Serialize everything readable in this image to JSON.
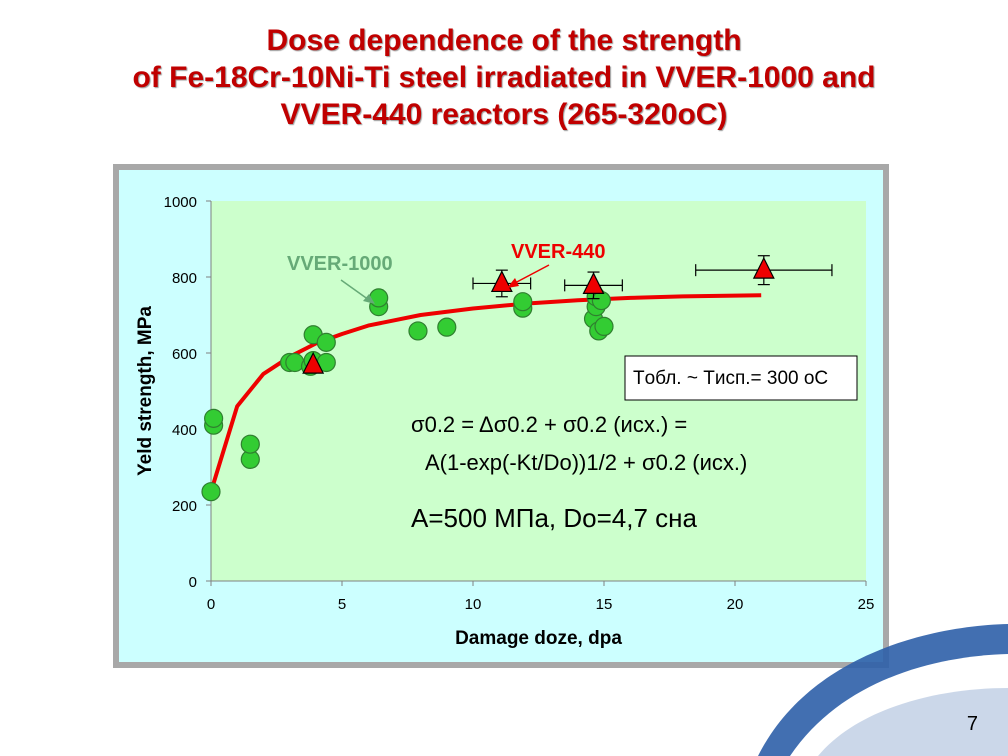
{
  "slide": {
    "title_lines": [
      "Dose dependence of the strength",
      "of Fe-18Cr-10Ni-Ti steel irradiated in VVER-1000 and",
      "VVER-440 reactors (265-320оС)"
    ],
    "page_number": "7",
    "colors": {
      "title": "#c00000",
      "frame": "#a8a8a8",
      "chart_bg": "#ccffff",
      "plot_bg": "#ccffcc",
      "deco": "#2e5fa8"
    }
  },
  "chart_data": {
    "type": "scatter",
    "xlabel": "Damage doze, dpa",
    "ylabel": "Yeld strength, MPa",
    "xlim": [
      0,
      25
    ],
    "ylim": [
      0,
      1000
    ],
    "xticks": [
      0,
      5,
      10,
      15,
      20,
      25
    ],
    "yticks": [
      0,
      200,
      400,
      600,
      800,
      1000
    ],
    "series": [
      {
        "name": "VVER-1000",
        "marker": "circle",
        "color": "#33cc33",
        "points": [
          [
            0,
            235
          ],
          [
            0.1,
            410
          ],
          [
            0.1,
            428
          ],
          [
            1.5,
            320
          ],
          [
            1.5,
            360
          ],
          [
            3.0,
            575
          ],
          [
            3.2,
            575
          ],
          [
            3.8,
            565
          ],
          [
            3.9,
            580
          ],
          [
            3.9,
            648
          ],
          [
            4.4,
            575
          ],
          [
            4.4,
            628
          ],
          [
            6.4,
            722
          ],
          [
            6.4,
            745
          ],
          [
            7.9,
            658
          ],
          [
            9.0,
            668
          ],
          [
            11.9,
            718
          ],
          [
            11.9,
            735
          ],
          [
            14.6,
            690
          ],
          [
            14.7,
            722
          ],
          [
            14.7,
            748
          ],
          [
            14.8,
            658
          ],
          [
            14.9,
            738
          ],
          [
            15.0,
            670
          ]
        ]
      },
      {
        "name": "VVER-440",
        "marker": "triangle",
        "color": "#ee0000",
        "points": [
          {
            "x": 3.9,
            "y": 568
          },
          {
            "x": 11.1,
            "y": 783,
            "yerr": 35,
            "xerr": 1.1
          },
          {
            "x": 14.6,
            "y": 778,
            "yerr": 35,
            "xerr": 1.1
          },
          {
            "x": 21.1,
            "y": 818,
            "yerr": 38,
            "xerr": 2.6
          }
        ]
      }
    ],
    "fit_curve": {
      "color": "#ee0000",
      "points": [
        [
          0,
          235
        ],
        [
          1,
          460
        ],
        [
          2,
          545
        ],
        [
          3,
          590
        ],
        [
          4,
          625
        ],
        [
          5,
          650
        ],
        [
          6,
          672
        ],
        [
          8,
          700
        ],
        [
          10,
          717
        ],
        [
          12,
          730
        ],
        [
          14,
          739
        ],
        [
          16,
          745
        ],
        [
          18,
          749
        ],
        [
          20,
          751
        ],
        [
          21,
          752
        ]
      ]
    },
    "annotations": {
      "vver1000": "VVER-1000",
      "vver440": "VVER-440",
      "temperature": "Tобл. ~ Tисп.= 300 оС",
      "formula_line1": "σ0.2 = Δσ0.2 + σ0.2 (исх.) =",
      "formula_line2": "A(1-exp(-Kt/Dо))1/2 + σ0.2 (исх.)",
      "params": "A=500 МПа, Dо=4,7 сна"
    }
  }
}
